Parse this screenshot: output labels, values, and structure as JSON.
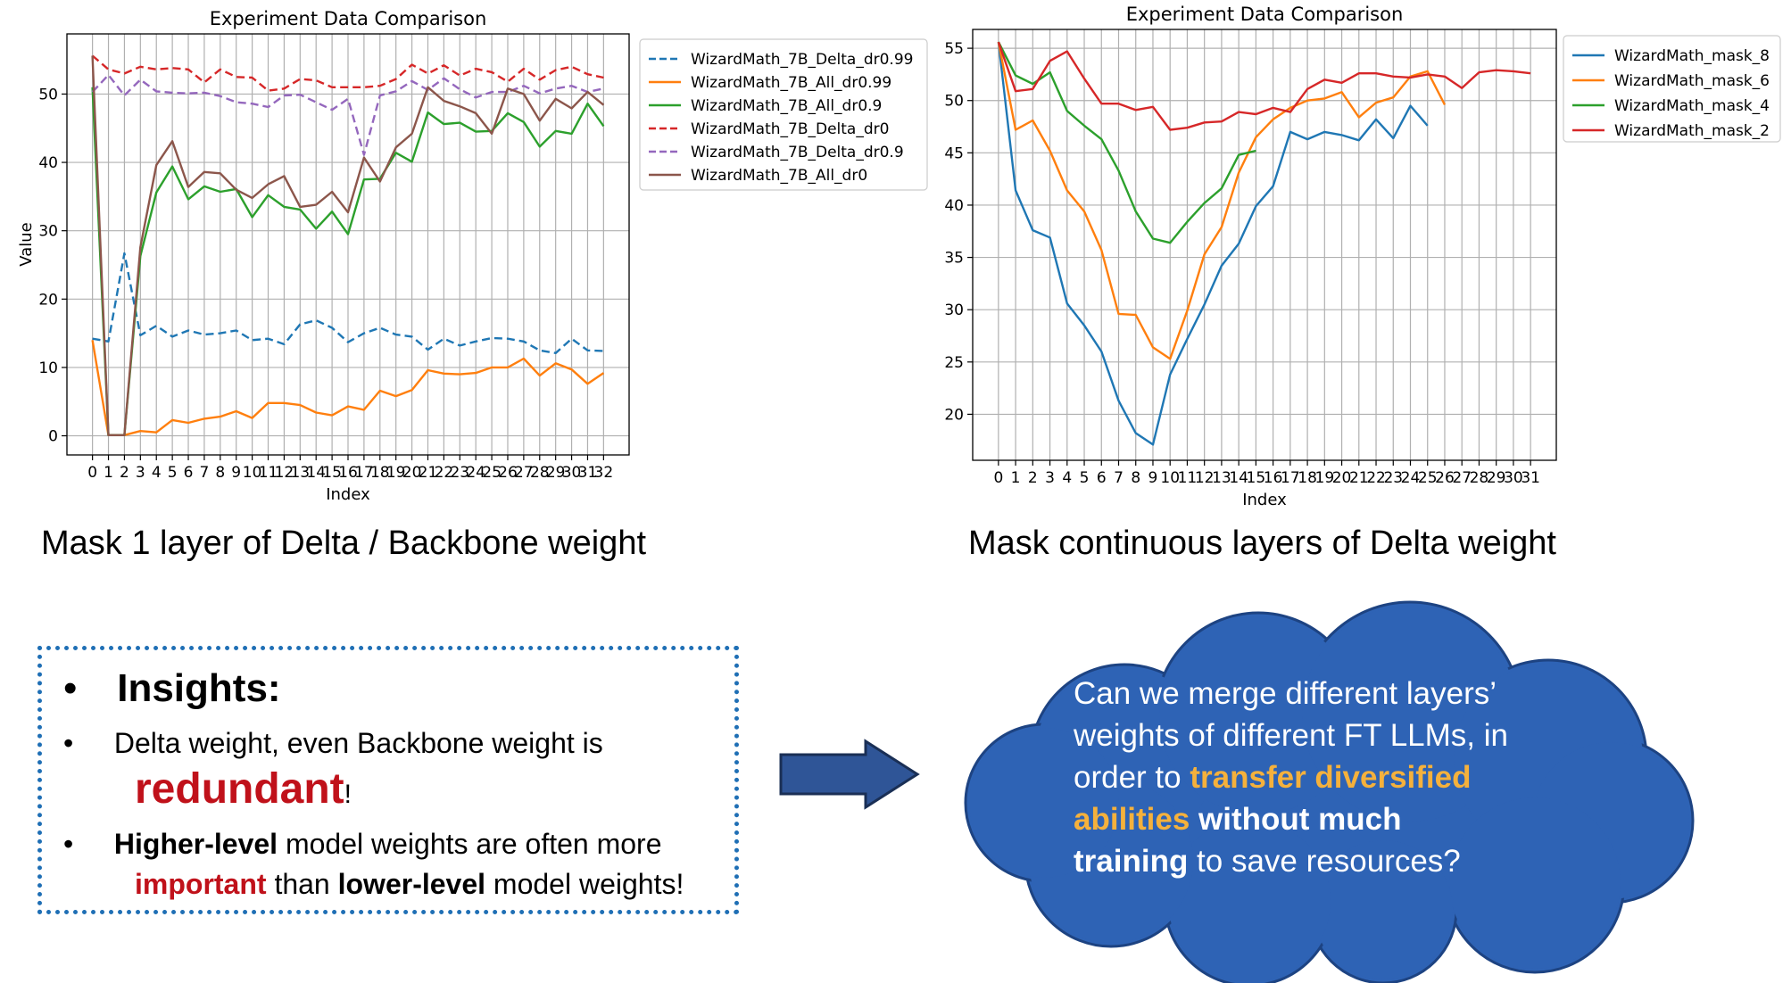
{
  "chart_data": [
    {
      "type": "line",
      "title": "Experiment Data Comparison",
      "xlabel": "Index",
      "ylabel": "Value",
      "xlim": [
        -1.6,
        33.6
      ],
      "ylim": [
        -2.8,
        58.8
      ],
      "x_ticks": [
        0,
        1,
        2,
        3,
        4,
        5,
        6,
        7,
        8,
        9,
        10,
        11,
        12,
        13,
        14,
        15,
        16,
        17,
        18,
        19,
        20,
        21,
        22,
        23,
        24,
        25,
        26,
        27,
        28,
        29,
        30,
        31,
        32
      ],
      "y_ticks": [
        0,
        10,
        20,
        30,
        40,
        50
      ],
      "grid": true,
      "legend_position": "outside-right-top",
      "series": [
        {
          "name": "WizardMath_7B_Delta_dr0.99",
          "color": "#1f77b4",
          "dash": "dashed",
          "values": [
            14.2,
            13.8,
            26.7,
            14.7,
            16.1,
            14.5,
            15.4,
            14.8,
            15.0,
            15.4,
            14.0,
            14.2,
            13.4,
            16.3,
            16.9,
            15.8,
            13.7,
            15.0,
            15.8,
            14.8,
            14.5,
            12.6,
            14.2,
            13.2,
            13.8,
            14.3,
            14.2,
            13.8,
            12.5,
            12.1,
            14.2,
            12.5,
            12.4
          ]
        },
        {
          "name": "WizardMath_7B_All_dr0.99",
          "color": "#ff7f0e",
          "dash": "solid",
          "values": [
            14.0,
            0.1,
            0.1,
            0.7,
            0.5,
            2.3,
            1.9,
            2.5,
            2.8,
            3.6,
            2.6,
            4.8,
            4.8,
            4.5,
            3.4,
            3.0,
            4.3,
            3.8,
            6.6,
            5.8,
            6.7,
            9.6,
            9.1,
            9.0,
            9.2,
            10.0,
            10.0,
            11.3,
            8.8,
            10.6,
            9.7,
            7.6,
            9.2
          ]
        },
        {
          "name": "WizardMath_7B_All_dr0.9",
          "color": "#2ca02c",
          "dash": "solid",
          "values": [
            51.0,
            0.1,
            0.1,
            26.3,
            35.6,
            39.4,
            34.6,
            36.5,
            35.7,
            36.1,
            32.0,
            35.2,
            33.5,
            33.1,
            30.3,
            32.8,
            29.5,
            37.5,
            37.6,
            41.4,
            40.1,
            47.3,
            45.6,
            45.8,
            44.5,
            44.6,
            47.2,
            45.9,
            42.3,
            44.6,
            44.2,
            48.6,
            45.3
          ]
        },
        {
          "name": "WizardMath_7B_Delta_dr0",
          "color": "#d62728",
          "dash": "dashed",
          "values": [
            55.6,
            53.6,
            53.0,
            54.0,
            53.6,
            53.8,
            53.6,
            51.7,
            53.6,
            52.5,
            52.4,
            50.5,
            50.8,
            52.2,
            52.0,
            51.0,
            51.0,
            51.0,
            51.2,
            52.2,
            54.3,
            53.0,
            54.2,
            52.7,
            53.7,
            53.2,
            51.8,
            53.7,
            52.1,
            53.5,
            54.0,
            52.9,
            52.4
          ]
        },
        {
          "name": "WizardMath_7B_Delta_dr0.9",
          "color": "#9467bd",
          "dash": "dashed",
          "values": [
            50.3,
            52.8,
            49.8,
            52.1,
            50.4,
            50.2,
            50.1,
            50.2,
            49.7,
            48.8,
            48.6,
            48.1,
            49.8,
            49.9,
            48.8,
            47.7,
            49.3,
            41.1,
            49.8,
            50.4,
            51.9,
            50.6,
            52.3,
            50.7,
            49.5,
            50.3,
            50.3,
            51.2,
            50.1,
            50.8,
            51.2,
            50.3,
            50.8
          ]
        },
        {
          "name": "WizardMath_7B_All_dr0",
          "color": "#8c564b",
          "dash": "solid",
          "values": [
            55.6,
            0.1,
            0.1,
            27.6,
            39.6,
            43.1,
            36.4,
            38.6,
            38.4,
            36.0,
            34.8,
            36.8,
            38.0,
            33.5,
            33.8,
            35.7,
            32.7,
            40.7,
            37.2,
            42.2,
            44.2,
            51.0,
            49.0,
            48.2,
            47.2,
            44.2,
            50.8,
            50.0,
            46.1,
            49.3,
            47.9,
            50.3,
            48.4
          ]
        }
      ]
    },
    {
      "type": "line",
      "title": "Experiment Data Comparison",
      "xlabel": "Index",
      "ylabel": "",
      "xlim": [
        -1.5,
        32.5
      ],
      "ylim": [
        15.6,
        56.8
      ],
      "x_ticks": [
        0,
        1,
        2,
        3,
        4,
        5,
        6,
        7,
        8,
        9,
        10,
        11,
        12,
        13,
        14,
        15,
        16,
        17,
        18,
        19,
        20,
        21,
        22,
        23,
        24,
        25,
        26,
        27,
        28,
        29,
        30,
        31
      ],
      "y_ticks": [
        20,
        25,
        30,
        35,
        40,
        45,
        50,
        55
      ],
      "grid": true,
      "legend_position": "outside-right-top",
      "series": [
        {
          "name": "WizardMath_mask_8",
          "color": "#1f77b4",
          "dash": "solid",
          "values": [
            55.6,
            41.4,
            37.6,
            36.9,
            30.6,
            28.5,
            26.0,
            21.3,
            18.2,
            17.1,
            23.8,
            27.2,
            30.5,
            34.2,
            36.3,
            39.9,
            41.8,
            47.0,
            46.3,
            47.0,
            46.7,
            46.2,
            48.2,
            46.4,
            49.5,
            47.6
          ]
        },
        {
          "name": "WizardMath_mask_6",
          "color": "#ff7f0e",
          "dash": "solid",
          "values": [
            55.6,
            47.2,
            48.1,
            45.2,
            41.4,
            39.4,
            35.7,
            29.6,
            29.5,
            26.4,
            25.3,
            29.9,
            35.3,
            37.9,
            43.1,
            46.5,
            48.2,
            49.3,
            50.0,
            50.2,
            50.8,
            48.4,
            49.8,
            50.3,
            52.3,
            52.8,
            49.6
          ]
        },
        {
          "name": "WizardMath_mask_4",
          "color": "#2ca02c",
          "dash": "solid",
          "values": [
            55.6,
            52.4,
            51.6,
            52.7,
            49.0,
            47.6,
            46.3,
            43.3,
            39.4,
            36.8,
            36.4,
            38.4,
            40.2,
            41.6,
            44.8,
            45.2
          ]
        },
        {
          "name": "WizardMath_mask_2",
          "color": "#d62728",
          "dash": "solid",
          "values": [
            55.6,
            50.9,
            51.1,
            53.8,
            54.7,
            52.1,
            49.7,
            49.7,
            49.1,
            49.4,
            47.2,
            47.4,
            47.9,
            48.0,
            48.9,
            48.7,
            49.3,
            48.9,
            51.1,
            52.0,
            51.7,
            52.6,
            52.6,
            52.3,
            52.2,
            52.5,
            52.3,
            51.2,
            52.7,
            52.9,
            52.8,
            52.6
          ]
        }
      ]
    }
  ],
  "captions": {
    "left": "Mask 1 layer of Delta / Backbone weight",
    "right": "Mask continuous layers of Delta weight"
  },
  "insights": {
    "heading": "Insights:",
    "b1_text": "Delta weight, even Backbone weight is",
    "b1_emph": "redundant",
    "b1_tail": "!",
    "b2_bold1": "Higher-level",
    "b2_text1": " model weights are often more",
    "b2_red": "important",
    "b2_text2": " than ",
    "b2_bold2": "lower-level",
    "b2_text3": " model weights!",
    "bullet": "•"
  },
  "cloud": {
    "line1": "Can we merge different layers’",
    "line2": "weights of different FT LLMs, in",
    "line3_a": "order to ",
    "line3_b": "transfer diversified",
    "line4_a": "abilities",
    "line4_b": " without much",
    "line5_a": "training",
    "line5_b": " to save resources?"
  },
  "colors": {
    "cloud_fill": "#2e63b5",
    "cloud_stroke": "#1d4382",
    "arrow_fill": "#2f5597",
    "highlight_red": "#c0111a",
    "highlight_orange": "#f5b13c",
    "box_border": "#1f6fb5"
  }
}
